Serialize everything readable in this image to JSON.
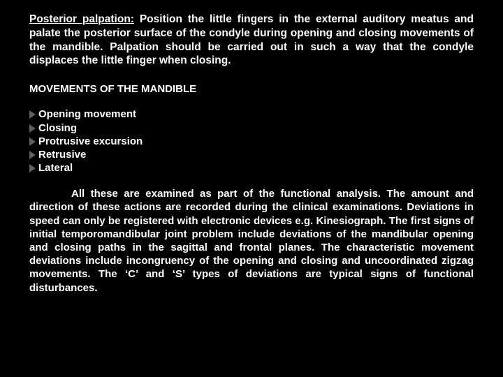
{
  "para1_lead": "Posterior palpation:",
  "para1_rest": " Position the little fingers in the external auditory meatus and palate the posterior surface of the condyle during opening and closing movements of the mandible. Palpation should be carried out in such a way that the condyle displaces the little finger when closing.",
  "heading": "MOVEMENTS OF THE MANDIBLE",
  "bullets": [
    "Opening movement",
    "Closing",
    "Protrusive excursion",
    "Retrusive",
    "Lateral"
  ],
  "para2": "All these are examined as part of the functional analysis. The amount and direction of these actions are recorded during the clinical examinations. Deviations in speed can only be registered with electronic devices e.g. Kinesiograph. The first signs of initial temporomandibular joint problem include deviations of the mandibular opening and closing paths in the sagittal and frontal planes. The characteristic movement deviations include incongruency of the opening and closing and uncoordinated zigzag movements. The ‘C’ and ‘S’ types of deviations are typical signs of functional disturbances."
}
